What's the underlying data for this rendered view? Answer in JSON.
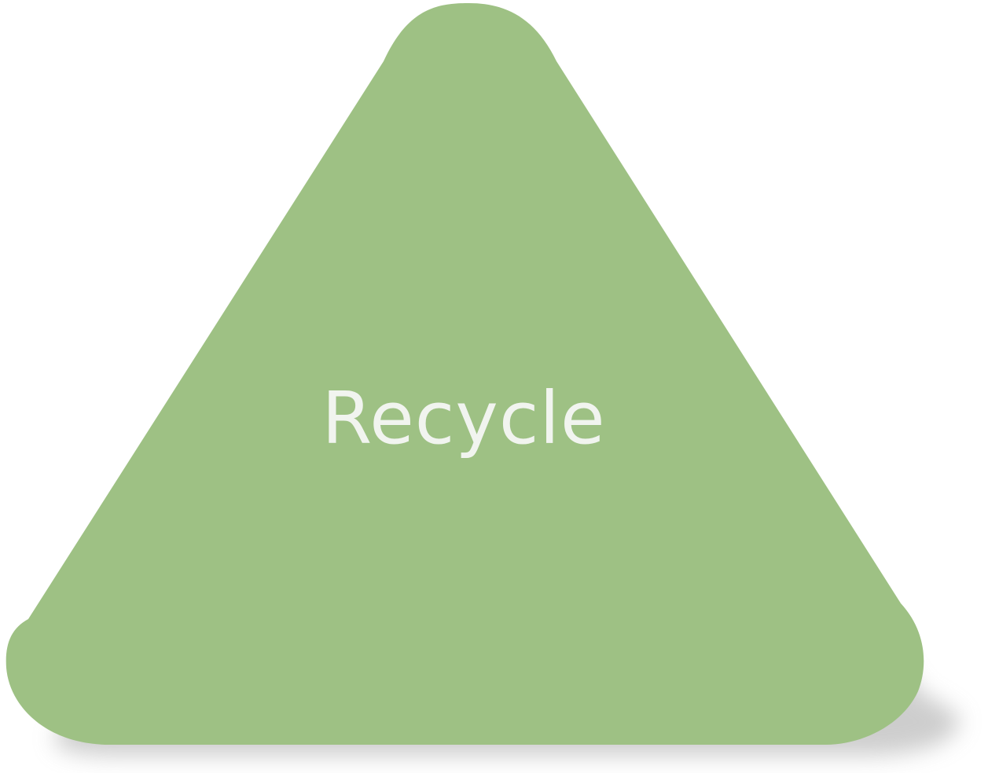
{
  "shape": {
    "label": "Recycle",
    "fill_color": "#9ec184",
    "text_color": "#f1f4ef",
    "shadow_color": "#bdbdbd"
  }
}
